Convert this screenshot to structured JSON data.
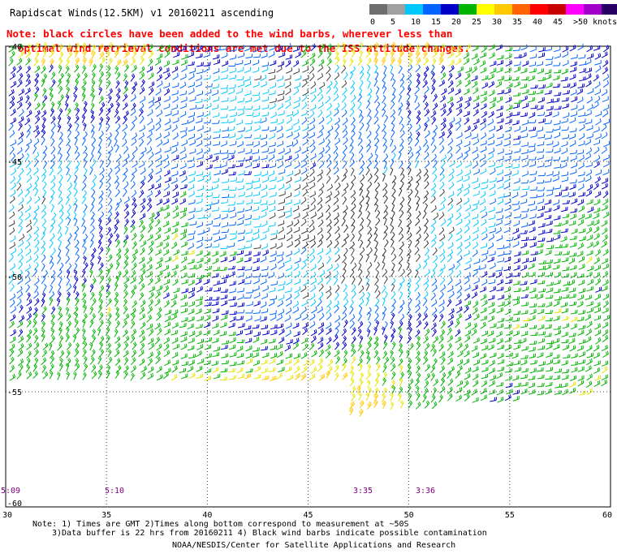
{
  "title": "Rapidscat Winds(12.5KM) v1 20160211 ascending",
  "note": {
    "line1": "Note: black circles have been added to the wind barbs, wherever less than",
    "line2": "optimal wind retrieval conditions are met due to the ISS attitude changes."
  },
  "scale": {
    "colors": [
      "#6e6e6e",
      "#a0a0a0",
      "#00c8ff",
      "#0064ff",
      "#0000c8",
      "#00b400",
      "#ffff00",
      "#ffc800",
      "#ff6400",
      "#ff0000",
      "#c80000",
      "#ff00ff",
      "#a000c8",
      "#280064"
    ],
    "labels": [
      "0",
      "5",
      "10",
      "15",
      "20",
      "25",
      "30",
      "35",
      "40",
      "45",
      ">50 knots"
    ]
  },
  "map": {
    "lat_labels": [
      "-40",
      "-45",
      "-50",
      "-55",
      "-60"
    ],
    "lon_labels": [
      "30",
      "35",
      "40",
      "45",
      "50",
      "55",
      "60"
    ],
    "time_labels": [
      "5:09",
      "5:10",
      "3:35",
      "3:36"
    ]
  },
  "footer": {
    "line1": "Note: 1) Times are GMT 2)Times along bottom correspond to measurement at ~50S",
    "line2": "3)Data buffer is 22 hrs from 20160211 4) Black wind barbs indicate possible contamination",
    "line3": "NOAA/NESDIS/Center for Satellite Applications and Research"
  }
}
